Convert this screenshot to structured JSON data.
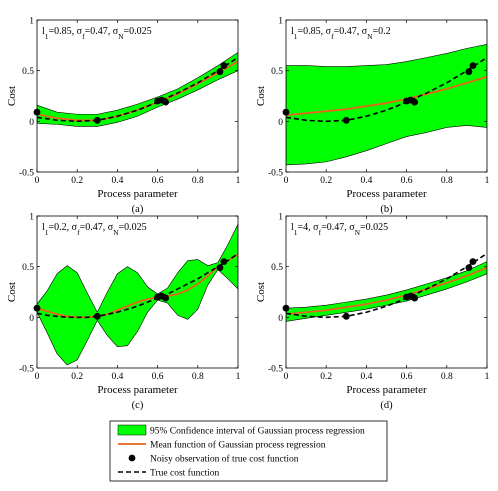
{
  "legend": {
    "items": [
      {
        "kind": "band",
        "label": "95% Confidence interval of Gaussian process regression",
        "color": "#00ff00"
      },
      {
        "kind": "mean",
        "label": "Mean function of Gaussian process regression",
        "color": "#e8641e"
      },
      {
        "kind": "obs",
        "label": "Noisy observation of true cost function",
        "color": "#000000"
      },
      {
        "kind": "true",
        "label": "True cost function",
        "color": "#000000"
      }
    ]
  },
  "chart_data": [
    {
      "type": "line",
      "sublabel": "(a)",
      "annotation": {
        "l": "1",
        "lval": "0.85",
        "f": "0.47",
        "n": "0.025"
      },
      "xlabel": "Process parameter",
      "ylabel": "Cost",
      "xlim": [
        0,
        1
      ],
      "ylim": [
        -0.5,
        1
      ],
      "xticks": [
        "0",
        "0.2",
        "0.4",
        "0.6",
        "0.8",
        "1"
      ],
      "yticks": [
        "-0.5",
        "0",
        "0.5",
        "1"
      ],
      "x": [
        0,
        0.1,
        0.2,
        0.3,
        0.4,
        0.5,
        0.6,
        0.7,
        0.8,
        0.9,
        1.0
      ],
      "mean": [
        0.07,
        0.03,
        0.01,
        0.01,
        0.05,
        0.11,
        0.19,
        0.27,
        0.37,
        0.48,
        0.59
      ],
      "upper": [
        0.16,
        0.09,
        0.07,
        0.07,
        0.11,
        0.17,
        0.24,
        0.32,
        0.43,
        0.55,
        0.68
      ],
      "lower": [
        -0.02,
        -0.03,
        -0.05,
        -0.05,
        -0.01,
        0.05,
        0.14,
        0.22,
        0.31,
        0.41,
        0.5
      ],
      "true": [
        0.04,
        0.01,
        0,
        0.01,
        0.05,
        0.11,
        0.19,
        0.28,
        0.38,
        0.5,
        0.63
      ],
      "obs_x": [
        0,
        0.3,
        0.6,
        0.62,
        0.64,
        0.91,
        0.93
      ],
      "obs_y": [
        0.09,
        0.01,
        0.2,
        0.21,
        0.19,
        0.49,
        0.55
      ]
    },
    {
      "type": "line",
      "sublabel": "(b)",
      "annotation": {
        "l": "1",
        "lval": "0.85",
        "f": "0.47",
        "n": "0.2"
      },
      "xlabel": "Process parameter",
      "ylabel": "Cost",
      "xlim": [
        0,
        1
      ],
      "ylim": [
        -0.5,
        1
      ],
      "xticks": [
        "0",
        "0.2",
        "0.4",
        "0.6",
        "0.8",
        "1"
      ],
      "yticks": [
        "-0.5",
        "0",
        "0.5",
        "1"
      ],
      "x": [
        0,
        0.1,
        0.2,
        0.3,
        0.4,
        0.5,
        0.6,
        0.7,
        0.8,
        0.9,
        1.0
      ],
      "mean": [
        0.06,
        0.08,
        0.1,
        0.12,
        0.15,
        0.18,
        0.22,
        0.27,
        0.32,
        0.38,
        0.44
      ],
      "upper": [
        0.55,
        0.55,
        0.54,
        0.54,
        0.55,
        0.56,
        0.59,
        0.63,
        0.67,
        0.72,
        0.76
      ],
      "lower": [
        -0.43,
        -0.42,
        -0.4,
        -0.35,
        -0.29,
        -0.22,
        -0.15,
        -0.11,
        -0.06,
        -0.04,
        -0.06
      ],
      "true": [
        0.04,
        0.01,
        0,
        0.01,
        0.05,
        0.11,
        0.19,
        0.28,
        0.38,
        0.5,
        0.63
      ],
      "obs_x": [
        0,
        0.3,
        0.6,
        0.62,
        0.64,
        0.91,
        0.93
      ],
      "obs_y": [
        0.09,
        0.01,
        0.2,
        0.21,
        0.19,
        0.49,
        0.55
      ]
    },
    {
      "type": "line",
      "sublabel": "(c)",
      "annotation": {
        "l": "1",
        "lval": "0.2",
        "f": "0.47",
        "n": "0.025"
      },
      "xlabel": "Process parameter",
      "ylabel": "Cost",
      "xlim": [
        0,
        1
      ],
      "ylim": [
        -0.5,
        1
      ],
      "xticks": [
        "0",
        "0.2",
        "0.4",
        "0.6",
        "0.8",
        "1"
      ],
      "yticks": [
        "-0.5",
        "0",
        "0.5",
        "1"
      ],
      "x": [
        0,
        0.05,
        0.1,
        0.15,
        0.2,
        0.25,
        0.3,
        0.35,
        0.4,
        0.45,
        0.5,
        0.55,
        0.6,
        0.65,
        0.7,
        0.75,
        0.8,
        0.85,
        0.9,
        0.95,
        1.0
      ],
      "mean": [
        0.09,
        0.06,
        0.03,
        0.01,
        0.0,
        0.0,
        0.01,
        0.03,
        0.07,
        0.11,
        0.15,
        0.18,
        0.2,
        0.21,
        0.23,
        0.27,
        0.33,
        0.41,
        0.5,
        0.56,
        0.62
      ],
      "upper": [
        0.13,
        0.26,
        0.43,
        0.51,
        0.44,
        0.24,
        0.05,
        0.25,
        0.43,
        0.5,
        0.44,
        0.3,
        0.23,
        0.29,
        0.44,
        0.56,
        0.57,
        0.51,
        0.54,
        0.72,
        0.92
      ],
      "lower": [
        0.05,
        -0.15,
        -0.36,
        -0.47,
        -0.42,
        -0.23,
        -0.03,
        -0.18,
        -0.29,
        -0.28,
        -0.14,
        0.05,
        0.17,
        0.14,
        0.02,
        -0.02,
        0.08,
        0.32,
        0.47,
        0.38,
        0.28
      ],
      "true": [
        0.04,
        0.02,
        0.01,
        0.0,
        0.0,
        0.0,
        0.01,
        0.03,
        0.05,
        0.08,
        0.11,
        0.15,
        0.19,
        0.23,
        0.28,
        0.33,
        0.38,
        0.44,
        0.5,
        0.56,
        0.63
      ],
      "obs_x": [
        0,
        0.3,
        0.6,
        0.62,
        0.64,
        0.91,
        0.93
      ],
      "obs_y": [
        0.09,
        0.01,
        0.2,
        0.21,
        0.19,
        0.49,
        0.55
      ]
    },
    {
      "type": "line",
      "sublabel": "(d)",
      "annotation": {
        "l": "1",
        "lval": "4",
        "f": "0.47",
        "n": "0.025"
      },
      "xlabel": "Process parameter",
      "ylabel": "Cost",
      "xlim": [
        0,
        1
      ],
      "ylim": [
        -0.5,
        1
      ],
      "xticks": [
        "0",
        "0.2",
        "0.4",
        "0.6",
        "0.8",
        "1"
      ],
      "yticks": [
        "-0.5",
        "0",
        "0.5",
        "1"
      ],
      "x": [
        0,
        0.1,
        0.2,
        0.3,
        0.4,
        0.5,
        0.6,
        0.7,
        0.8,
        0.9,
        1.0
      ],
      "mean": [
        0.03,
        0.05,
        0.07,
        0.1,
        0.13,
        0.17,
        0.22,
        0.28,
        0.34,
        0.41,
        0.49
      ],
      "upper": [
        0.09,
        0.1,
        0.12,
        0.15,
        0.18,
        0.22,
        0.27,
        0.33,
        0.39,
        0.46,
        0.55
      ],
      "lower": [
        -0.04,
        -0.01,
        0.02,
        0.05,
        0.08,
        0.12,
        0.16,
        0.22,
        0.28,
        0.35,
        0.43
      ],
      "true": [
        0.04,
        0.01,
        0,
        0.01,
        0.05,
        0.11,
        0.19,
        0.28,
        0.38,
        0.5,
        0.63
      ],
      "obs_x": [
        0,
        0.3,
        0.6,
        0.62,
        0.64,
        0.91,
        0.93
      ],
      "obs_y": [
        0.09,
        0.01,
        0.2,
        0.21,
        0.19,
        0.49,
        0.55
      ]
    }
  ]
}
